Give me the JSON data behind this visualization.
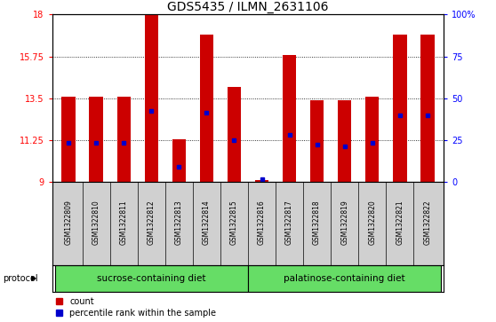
{
  "title": "GDS5435 / ILMN_2631106",
  "samples": [
    "GSM1322809",
    "GSM1322810",
    "GSM1322811",
    "GSM1322812",
    "GSM1322813",
    "GSM1322814",
    "GSM1322815",
    "GSM1322816",
    "GSM1322817",
    "GSM1322818",
    "GSM1322819",
    "GSM1322820",
    "GSM1322821",
    "GSM1322822"
  ],
  "count_values": [
    13.6,
    13.6,
    13.6,
    18.0,
    11.3,
    16.9,
    14.1,
    9.1,
    15.8,
    13.4,
    13.4,
    13.6,
    16.9,
    16.9
  ],
  "percentile_values": [
    11.1,
    11.1,
    11.1,
    12.8,
    9.8,
    12.7,
    11.25,
    9.15,
    11.55,
    11.0,
    10.9,
    11.1,
    12.6,
    12.6
  ],
  "ylim_left": [
    9,
    18
  ],
  "ylim_right": [
    0,
    100
  ],
  "yticks_left": [
    9,
    11.25,
    13.5,
    15.75,
    18
  ],
  "yticks_right": [
    0,
    25,
    50,
    75,
    100
  ],
  "ytick_labels_left": [
    "9",
    "11.25",
    "13.5",
    "15.75",
    "18"
  ],
  "ytick_labels_right": [
    "0",
    "25",
    "50",
    "75",
    "100%"
  ],
  "bar_color": "#cc0000",
  "marker_color": "#0000cc",
  "bar_width": 0.5,
  "bar_bottom": 9.0,
  "sucrose_samples": 7,
  "sucrose_label": "sucrose-containing diet",
  "palatinose_label": "palatinose-containing diet",
  "group_color": "#66dd66",
  "protocol_label": "protocol",
  "legend_count_label": "count",
  "legend_percentile_label": "percentile rank within the sample",
  "title_fontsize": 10,
  "tick_fontsize": 7,
  "sample_fontsize": 5.5,
  "group_fontsize": 7.5,
  "legend_fontsize": 7,
  "protocol_fontsize": 7
}
